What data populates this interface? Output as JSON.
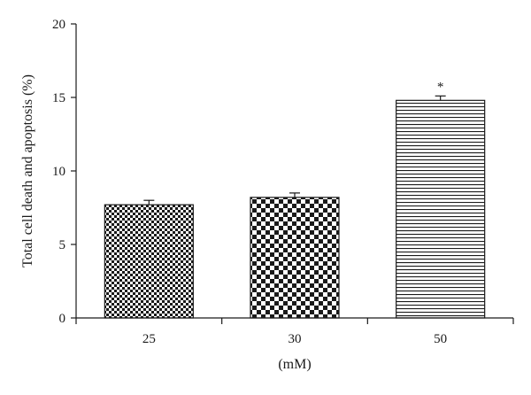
{
  "chart_data": {
    "type": "bar",
    "title": "",
    "xlabel": "(mM)",
    "ylabel": "Total cell death and apoptosis (%)",
    "ylim": [
      0,
      20
    ],
    "yticks": [
      0,
      5,
      10,
      15,
      20
    ],
    "grid": false,
    "categories": [
      "25",
      "30",
      "50"
    ],
    "values": [
      7.7,
      8.2,
      14.8
    ],
    "errors": [
      0.3,
      0.3,
      0.3
    ],
    "annotations": [
      "",
      "",
      "*"
    ],
    "patterns": [
      "fine-checker",
      "coarse-checker",
      "horizontal-stripes"
    ],
    "colors": {
      "ink": "#1a1a1a",
      "background": "#ffffff"
    }
  }
}
